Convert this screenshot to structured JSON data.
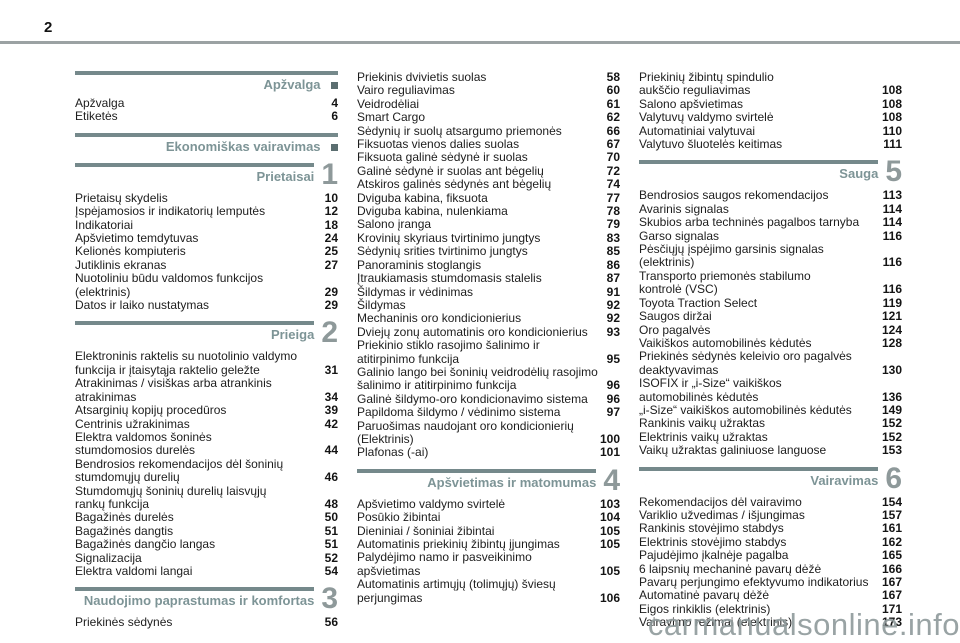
{
  "page": {
    "number": "2"
  },
  "watermark": "carmanualsonline.info",
  "colors": {
    "section_bar": "#75898b",
    "section_title": "#7d9496",
    "chapter_number": "#8e999a",
    "marker_square": "#5b6e70",
    "entry_text": "#1d1d1d",
    "top_rule": "#9ba2a3",
    "watermark": "#8f9a9b"
  },
  "columns": [
    {
      "sections": [
        {
          "type": "marker",
          "title": "Apžvalga",
          "entries": [
            {
              "label": "Apžvalga",
              "page": "4"
            },
            {
              "label": "Etiketės",
              "page": "6"
            }
          ]
        },
        {
          "type": "marker",
          "title": "Ekonomiškas vairavimas",
          "entries": []
        },
        {
          "type": "chapter",
          "title": "Prietaisai",
          "number": "1",
          "entries": [
            {
              "label": "Prietaisų skydelis",
              "page": "10"
            },
            {
              "label": "Įspėjamosios ir indikatorių lemputės",
              "page": "12"
            },
            {
              "label": "Indikatoriai",
              "page": "18"
            },
            {
              "label": "Apšvietimo temdytuvas",
              "page": "24"
            },
            {
              "label": "Kelionės kompiuteris",
              "page": "25"
            },
            {
              "label": "Jutiklinis ekranas",
              "page": "27"
            },
            {
              "label": "Nuotoliniu būdu valdomos funkcijos\n(elektrinis)",
              "page": "29"
            },
            {
              "label": "Datos ir laiko nustatymas",
              "page": "29"
            }
          ]
        },
        {
          "type": "chapter",
          "title": "Prieiga",
          "number": "2",
          "entries": [
            {
              "label": "Elektroninis raktelis su nuotolinio valdymo\nfunkcija ir įtaisytąja raktelio geležte",
              "page": "31"
            },
            {
              "label": "Atrakinimas / visiškas arba atrankinis\natrakinimas",
              "page": "34"
            },
            {
              "label": "Atsarginių kopijų procedūros",
              "page": "39"
            },
            {
              "label": "Centrinis užrakinimas",
              "page": "42"
            },
            {
              "label": "Elektra valdomos šoninės\nstumdomosios durelės",
              "page": "44"
            },
            {
              "label": "Bendrosios rekomendacijos dėl šoninių\nstumdomųjų durelių",
              "page": "46"
            },
            {
              "label": "Stumdomųjų šoninių durelių laisvųjų\nrankų funkcija",
              "page": "48"
            },
            {
              "label": "Bagažinės durelės",
              "page": "50"
            },
            {
              "label": "Bagažinės dangtis",
              "page": "51"
            },
            {
              "label": "Bagažinės dangčio langas",
              "page": "51"
            },
            {
              "label": "Signalizacija",
              "page": "52"
            },
            {
              "label": "Elektra valdomi langai",
              "page": "54"
            }
          ]
        },
        {
          "type": "chapter",
          "title": "Naudojimo paprastumas ir komfortas",
          "number": "3",
          "entries": [
            {
              "label": "Priekinės sėdynės",
              "page": "56"
            }
          ]
        }
      ]
    },
    {
      "sections": [
        {
          "type": "continuation",
          "entries": [
            {
              "label": "Priekinis dvivietis suolas",
              "page": "58"
            },
            {
              "label": "Vairo reguliavimas",
              "page": "60"
            },
            {
              "label": "Veidrodėliai",
              "page": "61"
            },
            {
              "label": "Smart Cargo",
              "page": "62"
            },
            {
              "label": "Sėdynių ir suolų atsargumo priemonės",
              "page": "66"
            },
            {
              "label": "Fiksuotas vienos dalies suolas",
              "page": "67"
            },
            {
              "label": "Fiksuota galinė sėdynė ir suolas",
              "page": "70"
            },
            {
              "label": "Galinė sėdynė ir suolas ant bėgelių",
              "page": "72"
            },
            {
              "label": "Atskiros galinės sėdynės ant bėgelių",
              "page": "74"
            },
            {
              "label": "Dviguba kabina, fiksuota",
              "page": "77"
            },
            {
              "label": "Dviguba kabina, nulenkiama",
              "page": "78"
            },
            {
              "label": "Salono įranga",
              "page": "79"
            },
            {
              "label": "Krovinių skyriaus tvirtinimo jungtys",
              "page": "83"
            },
            {
              "label": "Sėdynių srities tvirtinimo jungtys",
              "page": "85"
            },
            {
              "label": "Panoraminis stoglangis",
              "page": "86"
            },
            {
              "label": "Įtraukiamasis stumdomasis stalelis",
              "page": "87"
            },
            {
              "label": "Šildymas ir vėdinimas",
              "page": "91"
            },
            {
              "label": "Šildymas",
              "page": "92"
            },
            {
              "label": "Mechaninis oro kondicionierius",
              "page": "92"
            },
            {
              "label": "Dviejų zonų automatinis oro kondicionierius",
              "page": "93"
            },
            {
              "label": "Priekinio stiklo rasojimo šalinimo ir\natitirpinimo funkcija",
              "page": "95"
            },
            {
              "label": "Galinio lango bei šoninių veidrodėlių rasojimo\nšalinimo ir atitirpinimo funkcija",
              "page": "96"
            },
            {
              "label": "Galinė šildymo-oro kondicionavimo sistema",
              "page": "96"
            },
            {
              "label": "Papildoma šildymo / vėdinimo sistema",
              "page": "97"
            },
            {
              "label": "Paruošimas naudojant oro kondicionierių\n(Elektrinis)",
              "page": "100"
            },
            {
              "label": "Plafonas (-ai)",
              "page": "101"
            }
          ]
        },
        {
          "type": "chapter",
          "title": "Apšvietimas ir matomumas",
          "number": "4",
          "entries": [
            {
              "label": "Apšvietimo valdymo svirtelė",
              "page": "103"
            },
            {
              "label": "Posūkio žibintai",
              "page": "104"
            },
            {
              "label": "Dieniniai / šoniniai žibintai",
              "page": "105"
            },
            {
              "label": "Automatinis priekinių žibintų įjungimas",
              "page": "105"
            },
            {
              "label": "Palydėjimo namo ir pasveikinimo\napšvietimas",
              "page": "105"
            },
            {
              "label": "Automatinis artimųjų (tolimųjų) šviesų\nperjungimas",
              "page": "106"
            }
          ]
        }
      ]
    },
    {
      "sections": [
        {
          "type": "continuation",
          "entries": [
            {
              "label": "Priekinių žibintų spindulio\naukščio reguliavimas",
              "page": "108"
            },
            {
              "label": "Salono apšvietimas",
              "page": "108"
            },
            {
              "label": "Valytuvų valdymo svirtelė",
              "page": "108"
            },
            {
              "label": "Automatiniai valytuvai",
              "page": "110"
            },
            {
              "label": "Valytuvo šluotelės keitimas",
              "page": "111"
            }
          ]
        },
        {
          "type": "chapter",
          "title": "Sauga",
          "number": "5",
          "entries": [
            {
              "label": "Bendrosios saugos rekomendacijos",
              "page": "113"
            },
            {
              "label": "Avarinis signalas",
              "page": "114"
            },
            {
              "label": "Skubios arba techninės pagalbos tarnyba",
              "page": "114"
            },
            {
              "label": "Garso signalas",
              "page": "116"
            },
            {
              "label": "Pėsčiųjų įspėjimo garsinis signalas\n(elektrinis)",
              "page": "116"
            },
            {
              "label": "Transporto priemonės stabilumo\nkontrolė (VSC)",
              "page": "116"
            },
            {
              "label": "Toyota Traction Select",
              "page": "119"
            },
            {
              "label": "Saugos diržai",
              "page": "121"
            },
            {
              "label": "Oro pagalvės",
              "page": "124"
            },
            {
              "label": "Vaikiškos automobilinės kėdutės",
              "page": "128"
            },
            {
              "label": "Priekinės sėdynės keleivio oro pagalvės\ndeaktyvavimas",
              "page": "130"
            },
            {
              "label": "ISOFIX ir „i-Size“ vaikiškos\nautomobilinės kėdutės",
              "page": "136"
            },
            {
              "label": "„i-Size“ vaikiškos automobilinės kėdutės",
              "page": "149"
            },
            {
              "label": "Rankinis vaikų užraktas",
              "page": "152"
            },
            {
              "label": "Elektrinis vaikų užraktas",
              "page": "152"
            },
            {
              "label": "Vaikų užraktas galiniuose languose",
              "page": "153"
            }
          ]
        },
        {
          "type": "chapter",
          "title": "Vairavimas",
          "number": "6",
          "entries": [
            {
              "label": "Rekomendacijos dėl vairavimo",
              "page": "154"
            },
            {
              "label": "Variklio užvedimas / išjungimas",
              "page": "157"
            },
            {
              "label": "Rankinis stovėjimo stabdys",
              "page": "161"
            },
            {
              "label": "Elektrinis stovėjimo stabdys",
              "page": "162"
            },
            {
              "label": "Pajudėjimo įkalnėje pagalba",
              "page": "165"
            },
            {
              "label": "6 laipsnių mechaninė pavarų dėžė",
              "page": "166"
            },
            {
              "label": "Pavarų perjungimo efektyvumo indikatorius",
              "page": "167"
            },
            {
              "label": "Automatinė pavarų dėžė",
              "page": "167"
            },
            {
              "label": "Eigos rinkiklis (elektrinis)",
              "page": "171"
            },
            {
              "label": "Vairavimo režimai (elektrinis)",
              "page": "173"
            }
          ]
        }
      ]
    }
  ]
}
